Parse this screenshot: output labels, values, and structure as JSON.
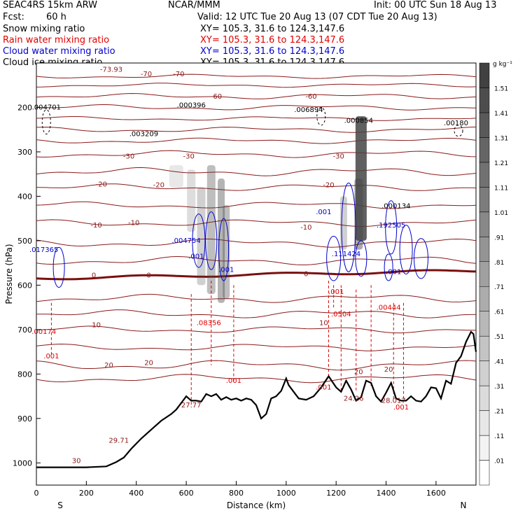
{
  "header": {
    "model": "SEAC4RS 15km ARW",
    "source": "NCAR/MMM",
    "init": "Init: 00 UTC Sun 18 Aug 13",
    "fcst_label": "Fcst:",
    "fcst_value": "60 h",
    "valid": "Valid: 12 UTC Tue 20 Aug 13 (07 CDT Tue 20 Aug 13)",
    "fields": [
      {
        "name": "Snow mixing ratio",
        "xy": "XY= 105.3, 31.6 to 124.3,147.6",
        "color": "#000000"
      },
      {
        "name": "Rain water mixing ratio",
        "xy": "XY= 105.3, 31.6 to 124.3,147.6",
        "color": "#e00000"
      },
      {
        "name": "Cloud water mixing ratio",
        "xy": "XY= 105.3, 31.6 to 124.3,147.6",
        "color": "#0000cc"
      },
      {
        "name": "Cloud ice mixing ratio",
        "xy": "XY= 105.3, 31.6 to 124.3,147.6",
        "color": "#000000"
      }
    ]
  },
  "chart_data": {
    "type": "cross-section",
    "xlabel": "Distance (km)",
    "ylabel": "Pressure (hPa)",
    "xlim": [
      0,
      1760
    ],
    "ylim": [
      1050,
      100
    ],
    "x_ticks": [
      0,
      200,
      400,
      600,
      800,
      1000,
      1200,
      1400,
      1600
    ],
    "y_ticks": [
      200,
      300,
      400,
      500,
      600,
      700,
      800,
      900,
      1000
    ],
    "x_end_labels": {
      "left": "S",
      "right": "N"
    },
    "colorbar": {
      "unit": "g kg⁻¹",
      "levels": [
        ".01",
        ".11",
        ".21",
        ".31",
        ".41",
        ".51",
        ".61",
        ".71",
        ".81",
        ".91",
        "1.01",
        "1.11",
        "1.21",
        "1.31",
        "1.41",
        "1.51"
      ]
    },
    "isotherm_labels": [
      {
        "text": "-73.93",
        "x": 300,
        "p": 120
      },
      {
        "text": "-70",
        "x": 440,
        "p": 130
      },
      {
        "text": "-70",
        "x": 570,
        "p": 130
      },
      {
        "text": "-60",
        "x": 720,
        "p": 180
      },
      {
        "text": "-60",
        "x": 1100,
        "p": 180
      },
      {
        "text": "-30",
        "x": 370,
        "p": 315
      },
      {
        "text": "-30",
        "x": 610,
        "p": 315
      },
      {
        "text": "-30",
        "x": 1210,
        "p": 315
      },
      {
        "text": "-20",
        "x": 260,
        "p": 378
      },
      {
        "text": "-20",
        "x": 490,
        "p": 380
      },
      {
        "text": "-20",
        "x": 1170,
        "p": 380
      },
      {
        "text": "-10",
        "x": 240,
        "p": 470
      },
      {
        "text": "-10",
        "x": 390,
        "p": 465
      },
      {
        "text": "-10",
        "x": 1080,
        "p": 475
      },
      {
        "text": "0",
        "x": 230,
        "p": 583
      },
      {
        "text": "0",
        "x": 450,
        "p": 583
      },
      {
        "text": "0",
        "x": 1080,
        "p": 580
      },
      {
        "text": "10",
        "x": 240,
        "p": 695
      },
      {
        "text": "10",
        "x": 1150,
        "p": 690
      },
      {
        "text": "20",
        "x": 290,
        "p": 785
      },
      {
        "text": "20",
        "x": 450,
        "p": 780
      },
      {
        "text": "20",
        "x": 1290,
        "p": 800
      },
      {
        "text": "20",
        "x": 1410,
        "p": 795
      },
      {
        "text": "30",
        "x": 160,
        "p": 1000
      }
    ],
    "black_maxima": [
      {
        "text": ".004701",
        "x": 40,
        "p": 205
      },
      {
        "text": ".000396",
        "x": 620,
        "p": 200
      },
      {
        "text": ".003209",
        "x": 430,
        "p": 265
      },
      {
        "text": ".006894",
        "x": 1090,
        "p": 210
      },
      {
        "text": ".000854",
        "x": 1290,
        "p": 235
      },
      {
        "text": ".00180",
        "x": 1680,
        "p": 240
      },
      {
        "text": ".000134",
        "x": 1440,
        "p": 427
      }
    ],
    "blue_maxima": [
      {
        "text": ".004754",
        "x": 600,
        "p": 505
      },
      {
        "text": ".001",
        "x": 640,
        "p": 540
      },
      {
        "text": ".001",
        "x": 760,
        "p": 570
      },
      {
        "text": ".017365",
        "x": 30,
        "p": 525
      },
      {
        "text": ".001",
        "x": 1150,
        "p": 440
      },
      {
        "text": ".111424",
        "x": 1240,
        "p": 535
      },
      {
        "text": ".192505",
        "x": 1420,
        "p": 470
      },
      {
        "text": ".001",
        "x": 1430,
        "p": 575
      }
    ],
    "red_maxima": [
      {
        "text": ".00174",
        "x": 30,
        "p": 710
      },
      {
        "text": ".001",
        "x": 60,
        "p": 765
      },
      {
        "text": ".08356",
        "x": 690,
        "p": 690
      },
      {
        "text": ".001",
        "x": 790,
        "p": 820
      },
      {
        "text": ".0504",
        "x": 1220,
        "p": 670
      },
      {
        "text": ".00444",
        "x": 1410,
        "p": 655
      },
      {
        "text": ".001",
        "x": 1150,
        "p": 835
      },
      {
        "text": ".001",
        "x": 1460,
        "p": 880
      },
      {
        "text": ".001",
        "x": 1200,
        "p": 620
      }
    ],
    "theta_labels": [
      {
        "text": "29.71",
        "x": 330,
        "p": 955
      },
      {
        "text": "27.77",
        "x": 620,
        "p": 875
      },
      {
        "text": "24.26",
        "x": 1270,
        "p": 860
      },
      {
        "text": "28.017",
        "x": 1430,
        "p": 865
      }
    ],
    "terrain_km": [
      0,
      100,
      200,
      280,
      320,
      350,
      380,
      420,
      460,
      500,
      540,
      560,
      580,
      600,
      620,
      640,
      660,
      680,
      700,
      720,
      740,
      760,
      780,
      800,
      820,
      840,
      860,
      880,
      900,
      920,
      940,
      960,
      980,
      1000,
      1010,
      1030,
      1050,
      1080,
      1110,
      1140,
      1170,
      1200,
      1220,
      1240,
      1260,
      1280,
      1300,
      1320,
      1340,
      1360,
      1380,
      1400,
      1420,
      1440,
      1460,
      1480,
      1500,
      1520,
      1540,
      1560,
      1580,
      1600,
      1620,
      1640,
      1660,
      1680,
      1700,
      1720,
      1740,
      1750,
      1760
    ],
    "terrain_p": [
      1010,
      1010,
      1010,
      1008,
      998,
      988,
      968,
      945,
      925,
      905,
      890,
      880,
      865,
      850,
      860,
      860,
      862,
      845,
      850,
      845,
      858,
      852,
      858,
      855,
      860,
      855,
      858,
      870,
      900,
      890,
      855,
      850,
      838,
      810,
      825,
      840,
      855,
      858,
      850,
      830,
      805,
      830,
      840,
      815,
      835,
      860,
      852,
      815,
      820,
      850,
      862,
      842,
      820,
      855,
      860,
      860,
      850,
      860,
      862,
      850,
      830,
      832,
      855,
      815,
      822,
      775,
      760,
      728,
      705,
      710,
      750
    ]
  }
}
